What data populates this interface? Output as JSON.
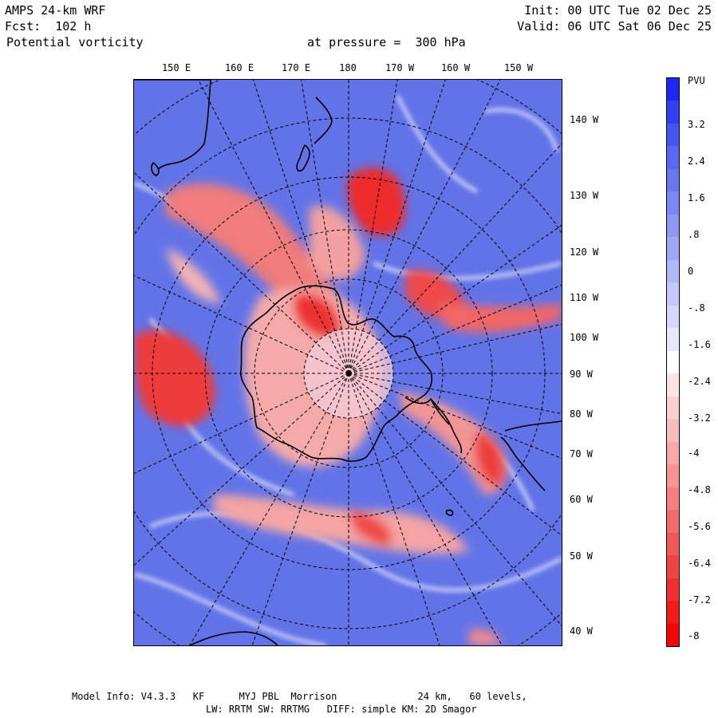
{
  "header": {
    "model": "AMPS 24-km WRF",
    "forecast": "Fcst:  102 h",
    "field": "Potential vorticity",
    "level": "at pressure =  300 hPa",
    "init": "Init: 00 UTC Tue 02 Dec 25",
    "valid": "Valid: 06 UTC Sat 06 Dec 25"
  },
  "axes": {
    "top_lon_labels": [
      "150 E",
      "160 E",
      "170 E",
      "180",
      "170 W",
      "160 W",
      "150 W"
    ],
    "right_lon_labels": [
      "140 W",
      "130 W",
      "120 W",
      "110 W",
      "100 W",
      "90 W",
      "80 W",
      "70 W",
      "60 W",
      "50 W",
      "40 W"
    ]
  },
  "colorbar": {
    "unit": "PVU",
    "labels": [
      "3.2",
      "2.4",
      "1.6",
      ".8",
      "0",
      "-.8",
      "-1.6",
      "-2.4",
      "-3.2",
      "-4",
      "-4.8",
      "-5.6",
      "-6.4",
      "-7.2",
      "-8"
    ],
    "colors": [
      "#1e28f0",
      "#3240f0",
      "#4456f0",
      "#5868f0",
      "#6a78f0",
      "#7c88f2",
      "#8e98f4",
      "#a0a8f6",
      "#b2b8f8",
      "#c4c8fa",
      "#d6d8fc",
      "#e8e8fe",
      "#ffffff",
      "#fde4e4",
      "#fcd0d0",
      "#fabcbc",
      "#f8a8a8",
      "#f69494",
      "#f48080",
      "#f26c6c",
      "#f05858",
      "#ee4444",
      "#f03030",
      "#f01c1c",
      "#f00808"
    ]
  },
  "footer": {
    "line1": "Model Info: V4.3.3   KF      MYJ PBL  Morrison              24 km,   60 levels,",
    "line2": "LW: RRTM SW: RRTMG   DIFF: simple KM: 2D Smagor"
  }
}
